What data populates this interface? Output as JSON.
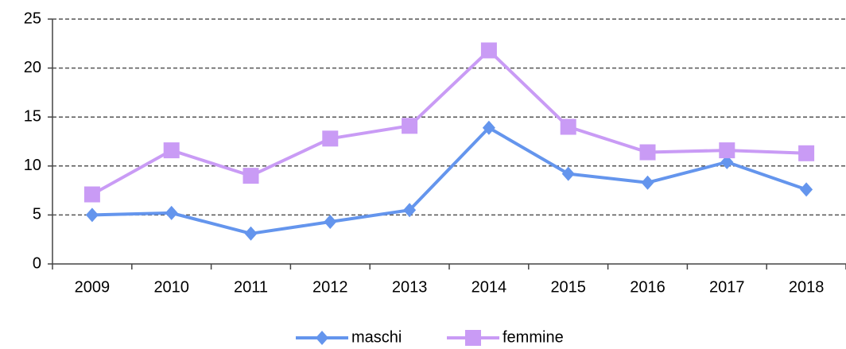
{
  "chart_data": {
    "type": "line",
    "categories": [
      "2009",
      "2010",
      "2011",
      "2012",
      "2013",
      "2014",
      "2015",
      "2016",
      "2017",
      "2018"
    ],
    "series": [
      {
        "name": "maschi",
        "color": "#6495ed",
        "marker": "diamond",
        "values": [
          5.0,
          5.2,
          3.1,
          4.3,
          5.5,
          13.9,
          9.2,
          8.3,
          10.4,
          7.6
        ]
      },
      {
        "name": "femmine",
        "color": "#c99bf5",
        "marker": "square",
        "values": [
          7.1,
          11.6,
          9.0,
          12.8,
          14.1,
          21.8,
          14.0,
          11.4,
          11.6,
          11.3
        ]
      }
    ],
    "ylim": [
      0,
      25
    ],
    "yticks": [
      0,
      5,
      10,
      15,
      20,
      25
    ],
    "grid": true,
    "legend": "bottom"
  }
}
